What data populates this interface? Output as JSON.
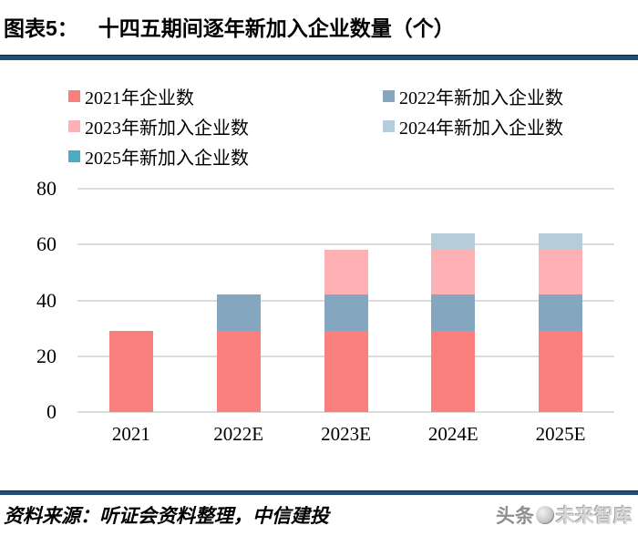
{
  "header": {
    "figure_label": "图表5：",
    "title": "十四五期间逐年新加入企业数量（个）"
  },
  "footer": {
    "source": "资料来源：听证会资料整理，中信建投",
    "watermark_brand": "头条",
    "watermark_name": "未来智库"
  },
  "colors": {
    "rule": "#1F4E79",
    "gridline": "#DCDCDC",
    "series_2021": "#FA8080",
    "series_2022": "#85A6BF",
    "series_2023": "#FDB1B4",
    "series_2024": "#B7CCDB",
    "series_2025": "#4BACC6"
  },
  "chart_data": {
    "type": "bar",
    "stacked": true,
    "title": "十四五期间逐年新加入企业数量（个）",
    "categories": [
      "2021",
      "2022E",
      "2023E",
      "2024E",
      "2025E"
    ],
    "series": [
      {
        "name": "2021年企业数",
        "color": "#FA8080",
        "values": [
          29,
          29,
          29,
          29,
          29
        ]
      },
      {
        "name": "2022年新加入企业数",
        "color": "#85A6BF",
        "values": [
          0,
          13,
          13,
          13,
          13
        ]
      },
      {
        "name": "2023年新加入企业数",
        "color": "#FDB1B4",
        "values": [
          0,
          0,
          16,
          16,
          16
        ]
      },
      {
        "name": "2024年新加入企业数",
        "color": "#B7CCDB",
        "values": [
          0,
          0,
          0,
          6,
          6
        ]
      },
      {
        "name": "2025年新加入企业数",
        "color": "#4BACC6",
        "values": [
          0,
          0,
          0,
          0,
          0
        ]
      }
    ],
    "stack_totals": [
      29,
      42,
      58,
      64,
      64
    ],
    "xlabel": "",
    "ylabel": "",
    "ylim": [
      0,
      80
    ],
    "yticks": [
      0,
      20,
      40,
      60,
      80
    ],
    "grid": true,
    "legend_position": "top-left, two columns"
  }
}
